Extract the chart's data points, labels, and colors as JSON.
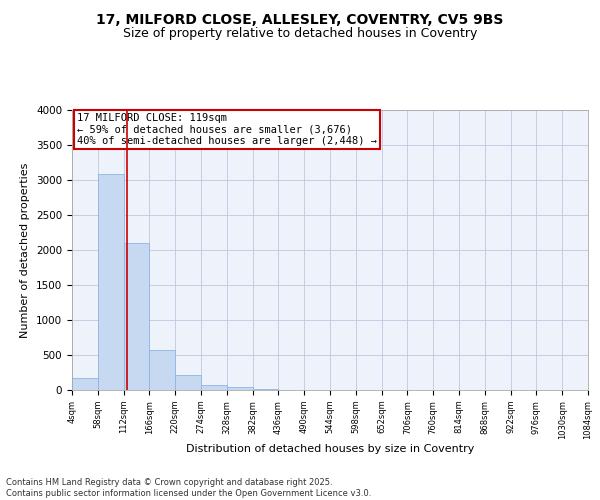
{
  "title_line1": "17, MILFORD CLOSE, ALLESLEY, COVENTRY, CV5 9BS",
  "title_line2": "Size of property relative to detached houses in Coventry",
  "xlabel": "Distribution of detached houses by size in Coventry",
  "ylabel": "Number of detached properties",
  "bar_edges": [
    4,
    58,
    112,
    166,
    220,
    274,
    328,
    382,
    436,
    490,
    544,
    598,
    652,
    706,
    760,
    814,
    868,
    922,
    976,
    1030,
    1084
  ],
  "bar_values": [
    170,
    3080,
    2100,
    570,
    210,
    75,
    40,
    20,
    0,
    0,
    0,
    0,
    0,
    0,
    0,
    0,
    0,
    0,
    0,
    0
  ],
  "bar_color": "#c6d9f0",
  "bar_edge_color": "#8eb4e3",
  "grid_color": "#c0c8e0",
  "background_color": "#eef2fb",
  "red_line_x": 119,
  "annotation_line1": "17 MILFORD CLOSE: 119sqm",
  "annotation_line2": "← 59% of detached houses are smaller (3,676)",
  "annotation_line3": "40% of semi-detached houses are larger (2,448) →",
  "annotation_box_color": "#ffffff",
  "annotation_box_edge_color": "#cc0000",
  "annotation_text_fontsize": 7.5,
  "ylim": [
    0,
    4000
  ],
  "yticks": [
    0,
    500,
    1000,
    1500,
    2000,
    2500,
    3000,
    3500,
    4000
  ],
  "footer_line1": "Contains HM Land Registry data © Crown copyright and database right 2025.",
  "footer_line2": "Contains public sector information licensed under the Open Government Licence v3.0.",
  "title_fontsize": 10,
  "subtitle_fontsize": 9,
  "xlabel_fontsize": 8,
  "ylabel_fontsize": 8
}
